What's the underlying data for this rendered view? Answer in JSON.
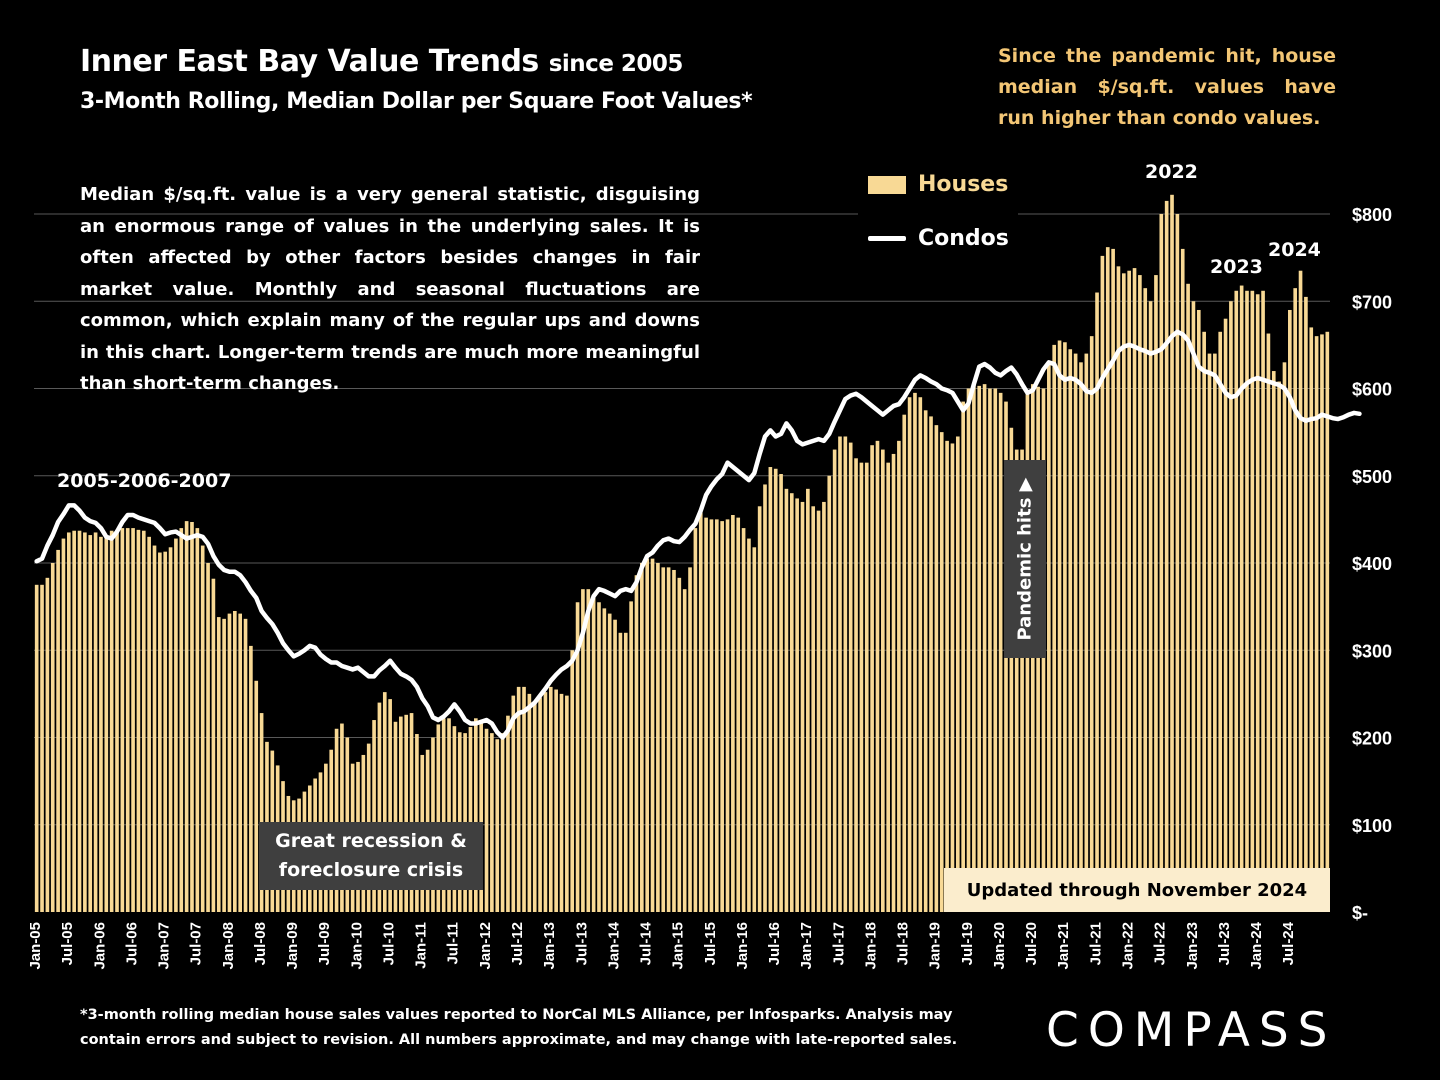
{
  "header": {
    "title_main": "Inner East Bay Value Trends",
    "title_since": "since 2005",
    "subtitle": "3-Month Rolling, Median Dollar per Square Foot Values*",
    "side_note": "Since the pandemic hit, house median $/sq.ft. values have run higher than condo values."
  },
  "explanation": "Median $/sq.ft. value is a very general statistic, disguising an enormous range of values in the underlying sales. It is often affected by other factors besides changes in fair market value. Monthly and seasonal fluctuations are common, which explain many of the regular ups and downs in this chart. Longer-term trends are much more meaningful than short-term changes.",
  "legend": {
    "houses": "Houses",
    "condos": "Condos"
  },
  "annotations": {
    "peak_2005_2007": "2005-2006-2007",
    "peak_2022": "2022",
    "peak_2023": "2023",
    "peak_2024": "2024",
    "recession": "Great recession & foreclosure crisis",
    "pandemic": "Pandemic hits ▶",
    "updated": "Updated through November 2024"
  },
  "footnote": "*3-month rolling median house sales values reported to NorCal MLS Alliance, per Infosparks. Analysis may contain errors and subject to revision. All numbers approximate, and may change with late-reported sales.",
  "brand": "COMPASS",
  "chart_data": {
    "type": "bar",
    "start_month": "Jan-05",
    "end_month": "Nov-24",
    "ylim": [
      0,
      800
    ],
    "y_ticks": [
      "$-",
      "$100",
      "$200",
      "$300",
      "$400",
      "$500",
      "$600",
      "$700",
      "$800"
    ],
    "x_tick_labels": [
      "Jan-05",
      "Jul-05",
      "Jan-06",
      "Jul-06",
      "Jan-07",
      "Jul-07",
      "Jan-08",
      "Jul-08",
      "Jan-09",
      "Jul-09",
      "Jan-10",
      "Jul-10",
      "Jan-11",
      "Jul-11",
      "Jan-12",
      "Jul-12",
      "Jan-13",
      "Jul-13",
      "Jan-14",
      "Jul-14",
      "Jan-15",
      "Jul-15",
      "Jan-16",
      "Jul-16",
      "Jan-17",
      "Jul-17",
      "Jan-18",
      "Jul-18",
      "Jan-19",
      "Jul-19",
      "Jan-20",
      "Jul-20",
      "Jan-21",
      "Jul-21",
      "Jan-22",
      "Jul-22",
      "Jan-23",
      "Jul-23",
      "Jan-24",
      "Jul-24"
    ],
    "colors": {
      "houses": "#f8d995",
      "condos": "#ffffff",
      "grid": "#595959"
    },
    "grid": true,
    "series": [
      {
        "name": "Houses",
        "type": "bar",
        "values": [
          375,
          375,
          383,
          400,
          415,
          428,
          435,
          437,
          437,
          435,
          432,
          435,
          430,
          430,
          437,
          438,
          440,
          440,
          440,
          438,
          437,
          430,
          420,
          412,
          413,
          418,
          428,
          440,
          448,
          447,
          440,
          420,
          400,
          382,
          338,
          336,
          342,
          345,
          342,
          336,
          305,
          265,
          228,
          195,
          185,
          168,
          150,
          133,
          128,
          130,
          138,
          145,
          153,
          160,
          170,
          186,
          210,
          216,
          200,
          170,
          172,
          180,
          193,
          220,
          240,
          252,
          244,
          218,
          224,
          226,
          228,
          204,
          180,
          186,
          200,
          215,
          222,
          222,
          213,
          206,
          205,
          212,
          222,
          220,
          210,
          205,
          198,
          205,
          225,
          248,
          258,
          258,
          250,
          240,
          246,
          252,
          258,
          255,
          250,
          248,
          300,
          355,
          370,
          370,
          362,
          355,
          348,
          342,
          335,
          320,
          320,
          356,
          386,
          400,
          405,
          405,
          400,
          395,
          395,
          392,
          383,
          370,
          395,
          440,
          458,
          452,
          450,
          450,
          448,
          450,
          455,
          452,
          440,
          428,
          418,
          465,
          490,
          510,
          508,
          502,
          485,
          480,
          474,
          470,
          485,
          465,
          460,
          470,
          500,
          530,
          545,
          545,
          538,
          520,
          515,
          515,
          535,
          540,
          530,
          515,
          525,
          540,
          570,
          590,
          595,
          590,
          575,
          568,
          558,
          550,
          540,
          537,
          545,
          585,
          600,
          605,
          603,
          605,
          600,
          600,
          595,
          585,
          555,
          530,
          530,
          595,
          605,
          602,
          600,
          630,
          650,
          655,
          653,
          645,
          640,
          630,
          640,
          660,
          710,
          752,
          762,
          760,
          740,
          732,
          735,
          738,
          730,
          715,
          700,
          730,
          800,
          815,
          822,
          800,
          760,
          720,
          700,
          690,
          665,
          640,
          640,
          665,
          680,
          700,
          712,
          718,
          712,
          712,
          708,
          712,
          663,
          620,
          608,
          630,
          690,
          715,
          735,
          705,
          670,
          660,
          662,
          665
        ]
      },
      {
        "name": "Condos",
        "type": "line",
        "values": [
          402,
          405,
          420,
          432,
          447,
          456,
          466,
          466,
          460,
          452,
          448,
          446,
          440,
          430,
          428,
          436,
          447,
          455,
          455,
          452,
          450,
          448,
          446,
          440,
          433,
          435,
          436,
          432,
          428,
          430,
          432,
          430,
          422,
          408,
          398,
          392,
          390,
          390,
          386,
          378,
          368,
          360,
          345,
          337,
          330,
          320,
          308,
          300,
          293,
          296,
          300,
          305,
          303,
          295,
          290,
          286,
          286,
          282,
          280,
          278,
          280,
          275,
          270,
          270,
          277,
          282,
          288,
          280,
          273,
          270,
          266,
          258,
          245,
          236,
          223,
          220,
          224,
          230,
          238,
          230,
          220,
          216,
          216,
          218,
          220,
          216,
          206,
          200,
          208,
          222,
          228,
          230,
          235,
          240,
          248,
          256,
          265,
          272,
          278,
          282,
          288,
          300,
          320,
          345,
          362,
          370,
          368,
          365,
          362,
          368,
          370,
          368,
          378,
          395,
          408,
          412,
          420,
          426,
          428,
          425,
          424,
          430,
          438,
          445,
          460,
          478,
          488,
          496,
          502,
          515,
          510,
          505,
          500,
          495,
          503,
          525,
          545,
          552,
          545,
          548,
          560,
          552,
          540,
          536,
          538,
          540,
          542,
          540,
          548,
          562,
          575,
          588,
          592,
          594,
          590,
          585,
          580,
          575,
          570,
          575,
          580,
          582,
          590,
          600,
          610,
          615,
          612,
          608,
          605,
          600,
          598,
          595,
          585,
          575,
          583,
          605,
          625,
          628,
          624,
          618,
          615,
          620,
          624,
          616,
          605,
          595,
          598,
          610,
          622,
          630,
          628,
          615,
          610,
          612,
          610,
          605,
          597,
          595,
          600,
          612,
          622,
          632,
          643,
          648,
          650,
          648,
          645,
          643,
          640,
          642,
          645,
          652,
          660,
          665,
          662,
          655,
          640,
          625,
          620,
          618,
          615,
          605,
          595,
          590,
          592,
          600,
          606,
          610,
          612,
          610,
          608,
          606,
          604,
          600,
          590,
          575,
          566,
          563,
          565,
          566,
          570,
          568,
          566,
          565,
          567,
          570,
          572,
          571
        ]
      }
    ]
  }
}
